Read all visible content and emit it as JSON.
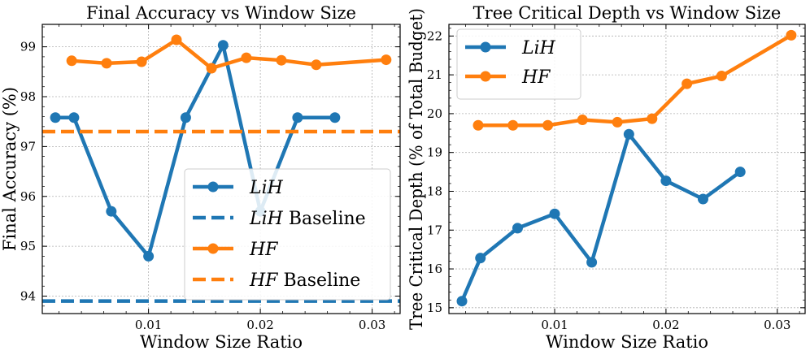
{
  "chart_data": [
    {
      "type": "line",
      "title": "Final Accuracy vs Window Size",
      "xlabel": "Window Size Ratio",
      "ylabel": "Final Accuracy (%)",
      "xlim": [
        0.0005,
        0.0325
      ],
      "ylim": [
        93.65,
        99.45
      ],
      "xticks": [
        0.01,
        0.02,
        0.03
      ],
      "xtick_labels": [
        "0.01",
        "0.02",
        "0.03"
      ],
      "yticks": [
        94,
        95,
        96,
        97,
        98,
        99
      ],
      "ytick_labels": [
        "94",
        "95",
        "96",
        "97",
        "98",
        "99"
      ],
      "grid": true,
      "legend_position": "lower-right",
      "series": [
        {
          "name": "LiH",
          "color": "#1f77b4",
          "style": "solid-marker",
          "x": [
            0.00167,
            0.00333,
            0.00667,
            0.01,
            0.01333,
            0.01667,
            0.02,
            0.02333,
            0.02667
          ],
          "y": [
            97.58,
            97.58,
            95.7,
            94.8,
            97.58,
            99.03,
            95.7,
            97.58,
            97.58
          ]
        },
        {
          "name": "LiH Baseline",
          "color": "#1f77b4",
          "style": "dashed",
          "y": 93.9
        },
        {
          "name": "HF",
          "color": "#ff7f0e",
          "style": "solid-marker",
          "x": [
            0.00313,
            0.00625,
            0.00938,
            0.0125,
            0.01563,
            0.01875,
            0.02188,
            0.025,
            0.03125
          ],
          "y": [
            98.72,
            98.67,
            98.7,
            99.14,
            98.57,
            98.78,
            98.73,
            98.64,
            98.74
          ]
        },
        {
          "name": "HF Baseline",
          "color": "#ff7f0e",
          "style": "dashed",
          "y": 97.3
        }
      ],
      "legend": [
        {
          "var": "LiH",
          "suffix": ""
        },
        {
          "var": "LiH",
          "suffix": " Baseline"
        },
        {
          "var": "HF",
          "suffix": ""
        },
        {
          "var": "HF",
          "suffix": " Baseline"
        }
      ]
    },
    {
      "type": "line",
      "title": "Tree Critical Depth vs Window Size",
      "xlabel": "Window Size Ratio",
      "ylabel": "Tree Critical Depth (% of Total Budget)",
      "xlim": [
        0.0005,
        0.0325
      ],
      "ylim": [
        14.85,
        22.3
      ],
      "xticks": [
        0.01,
        0.02,
        0.03
      ],
      "xtick_labels": [
        "0.01",
        "0.02",
        "0.03"
      ],
      "yticks": [
        15,
        16,
        17,
        18,
        19,
        20,
        21,
        22
      ],
      "ytick_labels": [
        "15",
        "16",
        "17",
        "18",
        "19",
        "20",
        "21",
        "22"
      ],
      "grid": true,
      "legend_position": "top-left",
      "series": [
        {
          "name": "LiH",
          "color": "#1f77b4",
          "style": "solid-marker",
          "x": [
            0.00167,
            0.00333,
            0.00667,
            0.01,
            0.01333,
            0.01667,
            0.02,
            0.02333,
            0.02667
          ],
          "y": [
            15.17,
            16.28,
            17.05,
            17.42,
            16.17,
            19.47,
            18.27,
            17.8,
            18.5
          ]
        },
        {
          "name": "HF",
          "color": "#ff7f0e",
          "style": "solid-marker",
          "x": [
            0.00313,
            0.00625,
            0.00938,
            0.0125,
            0.01563,
            0.01875,
            0.02188,
            0.025,
            0.03125
          ],
          "y": [
            19.7,
            19.7,
            19.7,
            19.84,
            19.78,
            19.87,
            20.77,
            20.97,
            22.02
          ]
        }
      ],
      "legend": [
        {
          "var": "LiH",
          "suffix": ""
        },
        {
          "var": "HF",
          "suffix": ""
        }
      ]
    }
  ]
}
